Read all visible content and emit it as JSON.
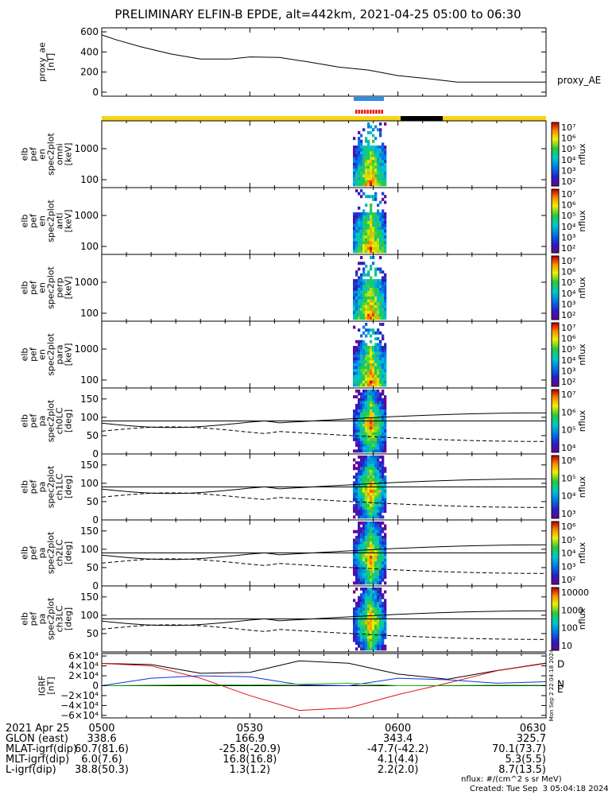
{
  "title": "PRELIMINARY ELFIN-B EPDE, alt=442km, 2021-04-25 05:00 to 06:30",
  "colors": {
    "orbit_day": "#f7d417",
    "orbit_night": "#000000",
    "science_blue": "#2a8fe8",
    "science_red": "#e81a1a",
    "igrf_d": "#e01010",
    "igrf_n": "#1e2cd8",
    "igrf_e": "#18c018"
  },
  "chart_data": [
    {
      "type": "line",
      "name": "proxy_ae",
      "ylabel_lines": [
        "proxy_ae",
        "[nT]"
      ],
      "legend": "proxy_AE",
      "yticks": [
        "600",
        "400",
        "200",
        "0"
      ],
      "ylim": [
        -40,
        640
      ],
      "x_min": [
        0,
        3,
        8,
        14,
        20,
        26,
        30,
        36,
        42,
        48,
        54,
        60,
        66,
        72,
        78,
        84,
        90
      ],
      "values": [
        570,
        520,
        450,
        380,
        330,
        330,
        350,
        345,
        300,
        250,
        220,
        165,
        135,
        100,
        100,
        100,
        100
      ]
    },
    {
      "type": "heatmap",
      "name": "elb_pef_en_spec2plot_omni",
      "ylabel_lines": [
        "elb",
        "pef",
        "en",
        "spec2plot",
        "omni",
        "[keV]"
      ],
      "yticks": [
        "1000",
        "100"
      ],
      "colorbar": {
        "label": "nflux",
        "ticks": [
          "10⁷",
          "10⁶",
          "10⁵",
          "10⁴",
          "10³",
          "10²"
        ]
      }
    },
    {
      "type": "heatmap",
      "name": "elb_pef_en_spec2plot_anti",
      "ylabel_lines": [
        "elb",
        "pef",
        "en",
        "spec2plot",
        "anti",
        "[keV]"
      ],
      "yticks": [
        "1000",
        "100"
      ],
      "colorbar": {
        "label": "nflux",
        "ticks": [
          "10⁷",
          "10⁶",
          "10⁵",
          "10⁴",
          "10³",
          "10²"
        ]
      }
    },
    {
      "type": "heatmap",
      "name": "elb_pef_en_spec2plot_perp",
      "ylabel_lines": [
        "elb",
        "pef",
        "en",
        "spec2plot",
        "perp",
        "[keV]"
      ],
      "yticks": [
        "1000",
        "100"
      ],
      "colorbar": {
        "label": "nflux",
        "ticks": [
          "10⁷",
          "10⁶",
          "10⁵",
          "10⁴",
          "10³",
          "10²"
        ]
      }
    },
    {
      "type": "heatmap",
      "name": "elb_pef_en_spec2plot_para",
      "ylabel_lines": [
        "elb",
        "pef",
        "en",
        "spec2plot",
        "para",
        "[keV]"
      ],
      "yticks": [
        "1000",
        "100"
      ],
      "colorbar": {
        "label": "nflux",
        "ticks": [
          "10⁷",
          "10⁶",
          "10⁵",
          "10⁴",
          "10³",
          "10²"
        ]
      }
    },
    {
      "type": "heatmap",
      "name": "elb_pef_pa_spec2plot_ch0LC",
      "ylabel_lines": [
        "elb",
        "pef",
        "pa",
        "spec2plot",
        "ch0LC",
        "[deg]"
      ],
      "yticks": [
        "150",
        "100",
        "50",
        "0"
      ],
      "colorbar": {
        "label": "nflux",
        "ticks": [
          "10⁷",
          "10⁶",
          "10⁵",
          "10⁴"
        ]
      }
    },
    {
      "type": "heatmap",
      "name": "elb_pef_pa_spec2plot_ch1LC",
      "ylabel_lines": [
        "elb",
        "pef",
        "pa",
        "spec2plot",
        "ch1LC",
        "[deg]"
      ],
      "yticks": [
        "150",
        "100",
        "50",
        "0"
      ],
      "colorbar": {
        "label": "nflux",
        "ticks": [
          "10⁶",
          "10⁵",
          "10⁴",
          "10³"
        ]
      }
    },
    {
      "type": "heatmap",
      "name": "elb_pef_pa_spec2plot_ch2LC",
      "ylabel_lines": [
        "elb",
        "pef",
        "pa",
        "spec2plot",
        "ch2LC",
        "[deg]"
      ],
      "yticks": [
        "150",
        "100",
        "50",
        "0"
      ],
      "colorbar": {
        "label": "nflux",
        "ticks": [
          "10⁶",
          "10⁵",
          "10⁴",
          "10³",
          "10²"
        ]
      }
    },
    {
      "type": "heatmap",
      "name": "elb_pef_pa_spec2plot_ch3LC",
      "ylabel_lines": [
        "elb",
        "pef",
        "pa",
        "spec2plot",
        "ch3LC",
        "[deg]"
      ],
      "yticks": [
        "150",
        "100",
        "50"
      ],
      "colorbar": {
        "label": "nflux",
        "ticks": [
          "10000",
          "1000",
          "100",
          "10"
        ]
      }
    },
    {
      "type": "line",
      "name": "IGRF",
      "ylabel_lines": [
        "IGRF",
        "[nT]"
      ],
      "yticks": [
        "6×10⁴",
        "4×10⁴",
        "2×10⁴",
        "0",
        "−2×10⁴",
        "−4×10⁴",
        "−6×10⁴"
      ],
      "ylim": [
        -65000,
        65000
      ],
      "x_min": [
        0,
        10,
        20,
        30,
        40,
        50,
        60,
        70,
        80,
        90
      ],
      "series": [
        {
          "name": "D",
          "values": [
            45000,
            40000,
            15000,
            -20000,
            -50000,
            -45000,
            -18000,
            5000,
            30000,
            45000
          ]
        },
        {
          "name": "N",
          "values": [
            0,
            15000,
            20000,
            18000,
            2000,
            0,
            15000,
            12000,
            5000,
            8000
          ]
        },
        {
          "name": "E",
          "values": [
            0,
            1000,
            2000,
            1500,
            3000,
            5000,
            0,
            500,
            1000,
            800
          ]
        }
      ]
    }
  ],
  "x_axis": {
    "tick_labels": [
      "0500",
      "0530",
      "0600",
      "0630"
    ]
  },
  "ephemeris": [
    {
      "label": "2021 Apr 25",
      "values": [
        "0500",
        "0530",
        "0600",
        "0630"
      ]
    },
    {
      "label": "GLON (east)",
      "values": [
        "338.6",
        "166.9",
        "343.4",
        "325.7"
      ]
    },
    {
      "label": "MLAT-igrf(dip)",
      "values": [
        "60.7(81.6)",
        "-25.8(-20.9)",
        "-47.7(-42.2)",
        "70.1(73.7)"
      ]
    },
    {
      "label": "MLT-igrf(dip)",
      "values": [
        "6.0(7.6)",
        "16.8(16.8)",
        "4.1(4.4)",
        "5.3(5.5)"
      ]
    },
    {
      "label": "L-igrf(dip)",
      "values": [
        "38.8(50.3)",
        "1.3(1.2)",
        "2.2(2.0)",
        "8.7(13.5)"
      ]
    }
  ],
  "footer": {
    "units": "nflux: #/(cm^2 s sr MeV)",
    "created": "Created: Tue Sep  3 05:04:18 2024",
    "side_stamp": "Mon Sep  2 22:04:18 2024"
  }
}
